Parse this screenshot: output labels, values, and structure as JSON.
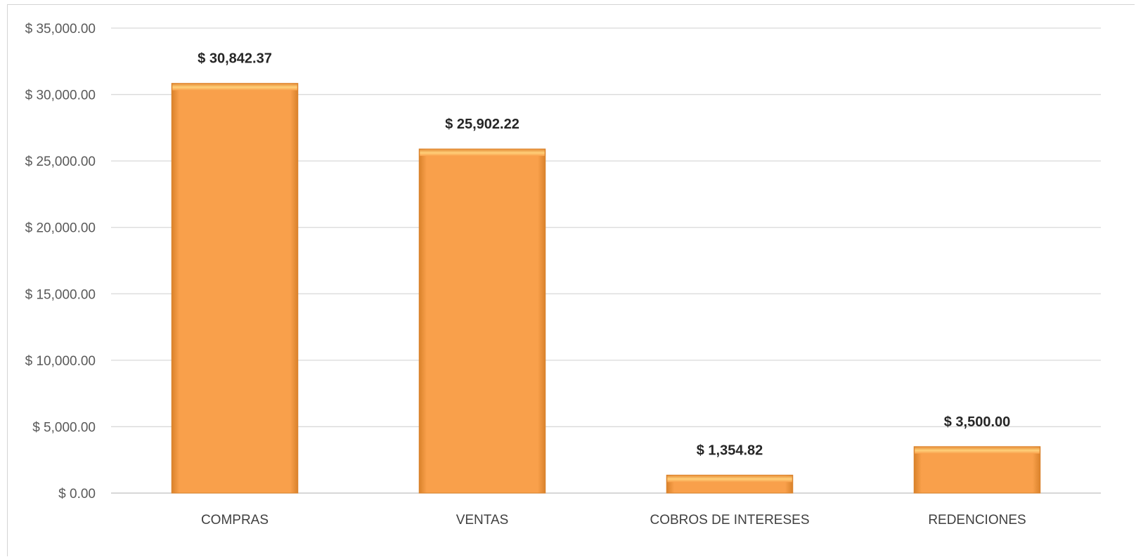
{
  "chart_data": {
    "type": "bar",
    "categories": [
      "COMPRAS",
      "VENTAS",
      "COBROS DE INTERESES",
      "REDENCIONES"
    ],
    "values": [
      30842.37,
      25902.22,
      1354.82,
      3500.0
    ],
    "data_labels": [
      "$ 30,842.37",
      "$ 25,902.22",
      "$ 1,354.82",
      "$ 3,500.00"
    ],
    "y_ticks": [
      0,
      5000,
      10000,
      15000,
      20000,
      25000,
      30000,
      35000
    ],
    "y_tick_labels": [
      "$ 0.00",
      "$ 5,000.00",
      "$ 10,000.00",
      "$ 15,000.00",
      "$ 20,000.00",
      "$ 25,000.00",
      "$ 30,000.00",
      "$ 35,000.00"
    ],
    "ylim": [
      0,
      35000
    ],
    "grid": true,
    "legend": "none",
    "title": "",
    "xlabel": "",
    "ylabel": "",
    "colors": {
      "bar": "#f9a04b",
      "bar_edge": "#d9822b",
      "bar_highlight": "#ffd07a",
      "grid": "#d9d9d9"
    }
  }
}
